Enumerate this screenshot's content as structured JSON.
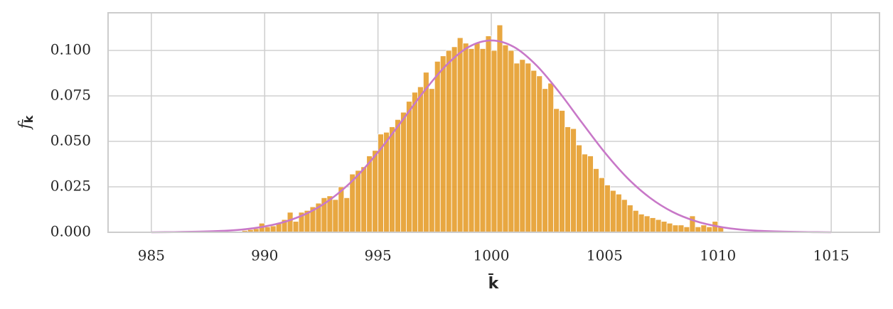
{
  "chart_data": {
    "type": "histogram",
    "xlabel": "k̄",
    "ylabel": "f",
    "ylabel_sub": "k̄",
    "color": "#e59d2c",
    "bins": [
      988.75,
      989.0,
      989.25,
      989.5,
      989.75,
      990.0,
      990.25,
      990.5,
      990.75,
      991.0,
      991.25,
      991.5,
      991.75,
      992.0,
      992.25,
      992.5,
      992.75,
      993.0,
      993.25,
      993.5,
      993.75,
      994.0,
      994.25,
      994.5,
      994.75,
      995.0,
      995.25,
      995.5,
      995.75,
      996.0,
      996.25,
      996.5,
      996.75,
      997.0,
      997.25,
      997.5,
      997.75,
      998.0,
      998.25,
      998.5,
      998.75,
      999.0,
      999.25,
      999.5,
      999.75,
      1000.0,
      1000.25,
      1000.5,
      1000.75,
      1001.0,
      1001.25,
      1001.5,
      1001.75,
      1002.0,
      1002.25,
      1002.5,
      1002.75,
      1003.0,
      1003.25,
      1003.5,
      1003.75,
      1004.0,
      1004.25,
      1004.5,
      1004.75,
      1005.0,
      1005.25,
      1005.5,
      1005.75,
      1006.0,
      1006.25,
      1006.5,
      1006.75,
      1007.0,
      1007.25,
      1007.5,
      1007.75,
      1008.0,
      1008.25,
      1008.5,
      1008.75,
      1009.0,
      1009.25,
      1009.5,
      1009.75,
      1010.0,
      1010.25
    ],
    "values": [
      0.0005,
      0.001,
      0.0015,
      0.002,
      0.005,
      0.003,
      0.0035,
      0.005,
      0.007,
      0.011,
      0.006,
      0.011,
      0.012,
      0.014,
      0.016,
      0.019,
      0.02,
      0.018,
      0.025,
      0.019,
      0.032,
      0.034,
      0.036,
      0.042,
      0.045,
      0.054,
      0.055,
      0.058,
      0.062,
      0.066,
      0.072,
      0.077,
      0.08,
      0.088,
      0.079,
      0.094,
      0.097,
      0.1,
      0.102,
      0.107,
      0.104,
      0.101,
      0.104,
      0.101,
      0.108,
      0.1,
      0.114,
      0.103,
      0.1,
      0.093,
      0.095,
      0.093,
      0.089,
      0.086,
      0.079,
      0.082,
      0.068,
      0.067,
      0.058,
      0.057,
      0.048,
      0.043,
      0.042,
      0.035,
      0.03,
      0.026,
      0.023,
      0.021,
      0.018,
      0.015,
      0.012,
      0.01,
      0.009,
      0.008,
      0.007,
      0.006,
      0.005,
      0.004,
      0.004,
      0.003,
      0.009,
      0.003,
      0.004,
      0.003,
      0.006,
      0.003
    ],
    "curve": {
      "color": "#c878c8",
      "x": [
        985,
        986,
        987,
        988,
        989,
        990,
        991,
        992,
        993,
        994,
        995,
        996,
        997,
        998,
        999,
        1000,
        1001,
        1002,
        1003,
        1004,
        1005,
        1006,
        1007,
        1008,
        1009,
        1010,
        1011,
        1012,
        1013,
        1014,
        1015
      ],
      "values": [
        0.0,
        0.0001,
        0.0003,
        0.0007,
        0.0015,
        0.0032,
        0.0062,
        0.0112,
        0.019,
        0.0299,
        0.044,
        0.0603,
        0.077,
        0.0917,
        0.1019,
        0.1055,
        0.1019,
        0.0917,
        0.077,
        0.0603,
        0.044,
        0.0299,
        0.019,
        0.0112,
        0.0062,
        0.0032,
        0.0015,
        0.0007,
        0.0003,
        0.0001,
        0.0
      ]
    },
    "xlim": [
      983.09,
      1017.13
    ],
    "ylim": [
      0,
      0.1207
    ],
    "xticks": [
      985,
      990,
      995,
      1000,
      1005,
      1010,
      1015
    ],
    "yticks": [
      {
        "value": 0,
        "label": "0.000"
      },
      {
        "value": 0.025,
        "label": "0.025"
      },
      {
        "value": 0.05,
        "label": "0.050"
      },
      {
        "value": 0.075,
        "label": "0.075"
      },
      {
        "value": 0.1,
        "label": "0.100"
      }
    ],
    "grid": true
  }
}
